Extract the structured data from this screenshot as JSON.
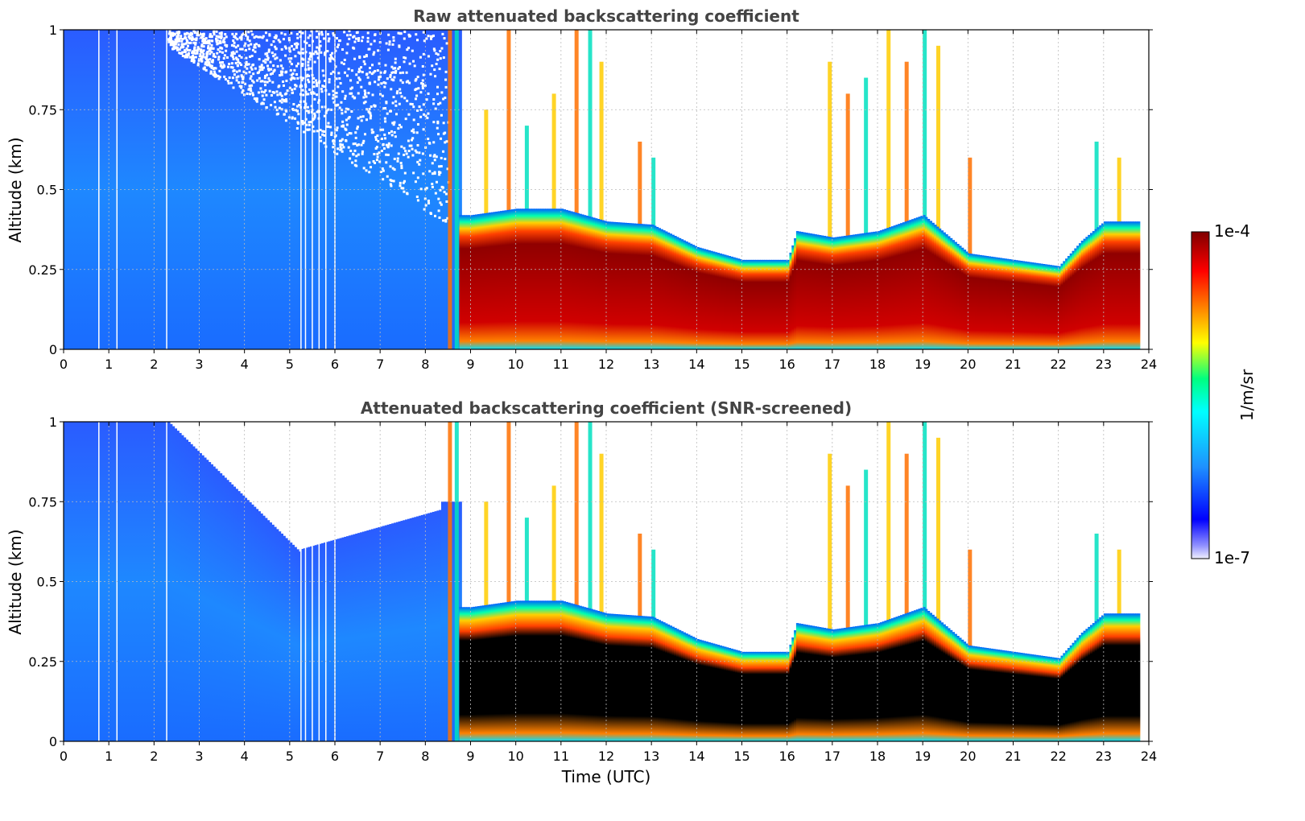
{
  "chart_data": [
    {
      "type": "heatmap",
      "title": "Raw attenuated backscattering coefficient",
      "xlabel": "",
      "ylabel": "Altitude (km)",
      "xlim": [
        0,
        24
      ],
      "ylim": [
        0,
        1
      ],
      "xticks": [
        "0",
        "1",
        "2",
        "3",
        "4",
        "5",
        "6",
        "7",
        "8",
        "9",
        "10",
        "11",
        "12",
        "13",
        "14",
        "15",
        "16",
        "17",
        "18",
        "19",
        "20",
        "21",
        "22",
        "23",
        "24"
      ],
      "yticks": [
        "0",
        "0.25",
        "0.5",
        "0.75",
        "1"
      ],
      "grid": true,
      "screened": false,
      "cloud_base_km": {
        "x": [
          8.7,
          9,
          10,
          11,
          12,
          13,
          14,
          15,
          16,
          16.2,
          17,
          18,
          19,
          20,
          21,
          22,
          22.5,
          23,
          23.8
        ],
        "y": [
          0.3,
          0.3,
          0.32,
          0.32,
          0.28,
          0.27,
          0.2,
          0.16,
          0.16,
          0.25,
          0.23,
          0.25,
          0.3,
          0.18,
          0.16,
          0.14,
          0.22,
          0.28,
          0.28
        ]
      }
    },
    {
      "type": "heatmap",
      "title": "Attenuated backscattering coefficient (SNR-screened)",
      "xlabel": "Time (UTC)",
      "ylabel": "Altitude (km)",
      "xlim": [
        0,
        24
      ],
      "ylim": [
        0,
        1
      ],
      "xticks": [
        "0",
        "1",
        "2",
        "3",
        "4",
        "5",
        "6",
        "7",
        "8",
        "9",
        "10",
        "11",
        "12",
        "13",
        "14",
        "15",
        "16",
        "17",
        "18",
        "19",
        "20",
        "21",
        "22",
        "23",
        "24"
      ],
      "yticks": [
        "0",
        "0.25",
        "0.5",
        "0.75",
        "1"
      ],
      "grid": true,
      "screened": true,
      "cloud_base_km": {
        "x": [
          8.7,
          9,
          10,
          11,
          12,
          13,
          14,
          15,
          16,
          16.2,
          17,
          18,
          19,
          20,
          21,
          22,
          22.5,
          23,
          23.8
        ],
        "y": [
          0.3,
          0.3,
          0.32,
          0.32,
          0.28,
          0.27,
          0.2,
          0.16,
          0.16,
          0.25,
          0.23,
          0.25,
          0.3,
          0.18,
          0.16,
          0.14,
          0.22,
          0.28,
          0.28
        ]
      }
    }
  ],
  "colorbar": {
    "label": "1/m/sr",
    "max_label": "1e-4",
    "min_label": "1e-7",
    "range": [
      1e-07,
      0.0001
    ],
    "scale": "log",
    "colormap": [
      "#f0f0ff",
      "#0000ff",
      "#1e90ff",
      "#00ffff",
      "#00ff80",
      "#ffff00",
      "#ff8000",
      "#ff0000",
      "#800000"
    ]
  }
}
